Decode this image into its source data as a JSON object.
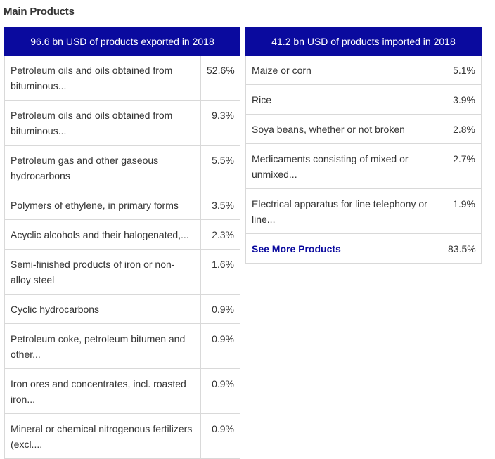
{
  "title": "Main Products",
  "exports": {
    "header": "96.6 bn USD of products exported in 2018",
    "rows": [
      {
        "name": "Petroleum oils and oils obtained from bituminous...",
        "pct": "52.6%"
      },
      {
        "name": "Petroleum oils and oils obtained from bituminous...",
        "pct": "9.3%"
      },
      {
        "name": "Petroleum gas and other gaseous hydrocarbons",
        "pct": "5.5%"
      },
      {
        "name": "Polymers of ethylene, in primary forms",
        "pct": "3.5%"
      },
      {
        "name": "Acyclic alcohols and their halogenated,...",
        "pct": "2.3%"
      },
      {
        "name": "Semi-finished products of iron or non-alloy steel",
        "pct": "1.6%"
      },
      {
        "name": "Cyclic hydrocarbons",
        "pct": "0.9%"
      },
      {
        "name": "Petroleum coke, petroleum bitumen and other...",
        "pct": "0.9%"
      },
      {
        "name": "Iron ores and concentrates, incl. roasted iron...",
        "pct": "0.9%"
      },
      {
        "name": "Mineral or chemical nitrogenous fertilizers (excl....",
        "pct": "0.9%"
      }
    ]
  },
  "imports": {
    "header": "41.2 bn USD of products imported in 2018",
    "rows": [
      {
        "name": "Maize or corn",
        "pct": "5.1%"
      },
      {
        "name": "Rice",
        "pct": "3.9%"
      },
      {
        "name": "Soya beans, whether or not broken",
        "pct": "2.8%"
      },
      {
        "name": "Medicaments consisting of mixed or unmixed...",
        "pct": "2.7%"
      },
      {
        "name": "Electrical apparatus for line telephony or line...",
        "pct": "1.9%"
      }
    ],
    "see_more": {
      "label": "See More Products",
      "pct": "83.5%"
    }
  },
  "colors": {
    "header_bg": "#0a0a9e",
    "link": "#0a0a9e",
    "border": "#d9d9d9",
    "text": "#333333"
  }
}
